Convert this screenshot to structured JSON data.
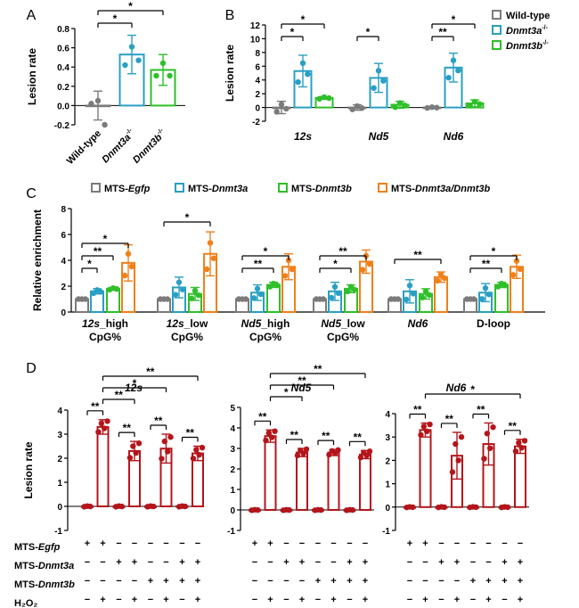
{
  "colors": {
    "gray": "#7b7b7b",
    "blue": "#2a9fc4",
    "green": "#2fbf2a",
    "orange": "#f08019",
    "red": "#b4151a",
    "star": "#000000"
  },
  "chart_data": [
    {
      "panel": "A",
      "type": "bar",
      "categories": [
        "Wild-type",
        "Dnmt3a",
        "Dnmt3b"
      ],
      "category_sup": [
        "",
        "-/-",
        "-/-"
      ],
      "category_italic": [
        false,
        true,
        true
      ],
      "ylabel": "Lesion rate",
      "ylim": [
        -0.2,
        0.8
      ],
      "yticks": [
        "-0.2",
        "0.0",
        "0.2",
        "0.4",
        "0.6",
        "0.8"
      ],
      "series": [
        {
          "values": [
            0.0,
            0.53,
            0.37
          ],
          "errors": [
            0.15,
            0.2,
            0.16
          ],
          "points": [
            [
              0.02,
              0.05,
              -0.2
            ],
            [
              0.42,
              0.61,
              0.47
            ],
            [
              0.31,
              0.44,
              0.31
            ]
          ],
          "colors": [
            "gray",
            "blue",
            "green"
          ]
        }
      ],
      "significance": [
        {
          "from": 0,
          "to": 1,
          "label": "*"
        },
        {
          "from": 0,
          "to": 2,
          "label": "*"
        }
      ]
    },
    {
      "panel": "B",
      "type": "bar",
      "categories": [
        "12s",
        "Nd5",
        "Nd6"
      ],
      "ylabel": "Lesion rate",
      "ylim": [
        -2,
        12
      ],
      "yticks": [
        "-2",
        "0",
        "2",
        "4",
        "6",
        "8",
        "10",
        "12"
      ],
      "legend": [
        "Wild-type",
        "Dnmt3a",
        "Dnmt3b"
      ],
      "legend_sup": [
        "",
        "-/-",
        "-/-"
      ],
      "series": [
        {
          "name": "Wild-type",
          "color": "gray",
          "values": [
            0,
            0,
            0
          ],
          "errors": [
            0.9,
            0.4,
            0.1
          ]
        },
        {
          "name": "Dnmt3a-/-",
          "color": "blue",
          "values": [
            5.3,
            4.3,
            5.8
          ],
          "errors": [
            2.3,
            2.1,
            2.1
          ]
        },
        {
          "name": "Dnmt3b-/-",
          "color": "green",
          "values": [
            1.4,
            0.4,
            0.6
          ],
          "errors": [
            0.2,
            0.5,
            0.5
          ]
        }
      ],
      "significance": [
        {
          "group": 0,
          "from": 0,
          "to": 1,
          "label": "*"
        },
        {
          "group": 0,
          "from": 0,
          "to": 2,
          "label": "*"
        },
        {
          "group": 1,
          "from": 0,
          "to": 1,
          "label": "*"
        },
        {
          "group": 2,
          "from": 0,
          "to": 1,
          "label": "**"
        },
        {
          "group": 2,
          "from": 0,
          "to": 2,
          "label": "*"
        }
      ]
    },
    {
      "panel": "C",
      "type": "bar",
      "categories": [
        "12s_high CpG%",
        "12s_low CpG%",
        "Nd5_high CpG%",
        "Nd5_low CpG%",
        "Nd6",
        "D-loop"
      ],
      "ylabel": "Relative enrichment",
      "ylim": [
        0,
        8
      ],
      "yticks": [
        "0",
        "2",
        "4",
        "6",
        "8"
      ],
      "legend": [
        "MTS-Egfp",
        "MTS-Dnmt3a",
        "MTS-Dnmt3b",
        "MTS-Dnmt3a/Dnmt3b"
      ],
      "series": [
        {
          "name": "MTS-Egfp",
          "color": "gray",
          "values": [
            1,
            1,
            1,
            1,
            1,
            1
          ],
          "errors": [
            0,
            0,
            0,
            0,
            0,
            0
          ]
        },
        {
          "name": "MTS-Dnmt3a",
          "color": "blue",
          "values": [
            1.6,
            1.9,
            1.5,
            1.6,
            1.6,
            1.5
          ],
          "errors": [
            0.2,
            0.8,
            0.6,
            0.7,
            0.9,
            0.7
          ]
        },
        {
          "name": "MTS-Dnmt3b",
          "color": "green",
          "values": [
            1.8,
            1.4,
            2.1,
            1.8,
            1.4,
            2.1
          ],
          "errors": [
            0.1,
            0.5,
            0.2,
            0.3,
            0.4,
            0.2
          ]
        },
        {
          "name": "MTS-Dnmt3a/Dnmt3b",
          "color": "orange",
          "values": [
            3.8,
            4.5,
            3.5,
            3.9,
            2.7,
            3.5
          ],
          "errors": [
            1.4,
            1.7,
            1.0,
            0.9,
            0.4,
            0.9
          ]
        }
      ],
      "significance": [
        {
          "group": 0,
          "from": 0,
          "to": 1,
          "label": "*"
        },
        {
          "group": 0,
          "from": 0,
          "to": 2,
          "label": "**"
        },
        {
          "group": 0,
          "from": 0,
          "to": 3,
          "label": "*"
        },
        {
          "group": 1,
          "from": 0,
          "to": 3,
          "label": "*"
        },
        {
          "group": 2,
          "from": 0,
          "to": 2,
          "label": "**"
        },
        {
          "group": 2,
          "from": 0,
          "to": 3,
          "label": "*"
        },
        {
          "group": 3,
          "from": 0,
          "to": 2,
          "label": "*"
        },
        {
          "group": 3,
          "from": 0,
          "to": 3,
          "label": "**"
        },
        {
          "group": 4,
          "from": 0,
          "to": 3,
          "label": "**"
        },
        {
          "group": 5,
          "from": 0,
          "to": 2,
          "label": "**"
        },
        {
          "group": 5,
          "from": 0,
          "to": 3,
          "label": "*"
        }
      ]
    },
    {
      "panel": "D-12s",
      "type": "bar",
      "title": "12s",
      "ylabel": "Lesion rate",
      "ylim": [
        -1,
        4
      ],
      "yticks": [
        "-1",
        "0",
        "1",
        "2",
        "3",
        "4"
      ],
      "values": [
        0,
        3.3,
        0,
        2.3,
        0,
        2.4,
        0,
        2.2
      ],
      "errors": [
        0.02,
        0.3,
        0.02,
        0.4,
        0.02,
        0.6,
        0.02,
        0.3
      ],
      "significance": [
        {
          "from": 0,
          "to": 1,
          "label": "**"
        },
        {
          "from": 2,
          "to": 3,
          "label": "**"
        },
        {
          "from": 4,
          "to": 5,
          "label": "**"
        },
        {
          "from": 6,
          "to": 7,
          "label": "**"
        },
        {
          "from": 1,
          "to": 3,
          "label": "**"
        },
        {
          "from": 1,
          "to": 5,
          "label": "*"
        },
        {
          "from": 1,
          "to": 7,
          "label": "**"
        }
      ]
    },
    {
      "panel": "D-Nd5",
      "type": "bar",
      "title": "Nd5",
      "ylim": [
        -1,
        5
      ],
      "yticks": [
        "-1",
        "0",
        "1",
        "2",
        "3",
        "4",
        "5"
      ],
      "values": [
        0,
        3.6,
        0,
        2.8,
        0,
        2.8,
        0,
        2.7
      ],
      "errors": [
        0.02,
        0.3,
        0.02,
        0.2,
        0.02,
        0.15,
        0.02,
        0.2
      ],
      "significance": [
        {
          "from": 0,
          "to": 1,
          "label": "**"
        },
        {
          "from": 2,
          "to": 3,
          "label": "**"
        },
        {
          "from": 4,
          "to": 5,
          "label": "**"
        },
        {
          "from": 6,
          "to": 7,
          "label": "**"
        },
        {
          "from": 1,
          "to": 3,
          "label": "*"
        },
        {
          "from": 1,
          "to": 5,
          "label": "**"
        },
        {
          "from": 1,
          "to": 7,
          "label": "**"
        }
      ]
    },
    {
      "panel": "D-Nd6",
      "type": "bar",
      "title": "Nd6",
      "ylim": [
        -1,
        4
      ],
      "yticks": [
        "-1",
        "0",
        "1",
        "2",
        "3",
        "4"
      ],
      "values": [
        0,
        3.3,
        0,
        2.2,
        0,
        2.7,
        0,
        2.6
      ],
      "errors": [
        0.02,
        0.3,
        0.02,
        1.0,
        0.02,
        0.9,
        0.02,
        0.3
      ],
      "significance": [
        {
          "from": 0,
          "to": 1,
          "label": "**"
        },
        {
          "from": 2,
          "to": 3,
          "label": "**"
        },
        {
          "from": 4,
          "to": 5,
          "label": "**"
        },
        {
          "from": 6,
          "to": 7,
          "label": "**"
        },
        {
          "from": 1,
          "to": 7,
          "label": "*"
        }
      ]
    }
  ],
  "panel_labels": [
    "A",
    "B",
    "C",
    "D"
  ],
  "condition_rows": [
    {
      "label": "MTS-",
      "italic": "Egfp",
      "signs": [
        "+",
        "+",
        "−",
        "−",
        "−",
        "−",
        "−",
        "−"
      ]
    },
    {
      "label": "MTS-",
      "italic": "Dnmt3a",
      "signs": [
        "−",
        "−",
        "+",
        "+",
        "−",
        "−",
        "+",
        "+"
      ]
    },
    {
      "label": "MTS-",
      "italic": "Dnmt3b",
      "signs": [
        "−",
        "−",
        "−",
        "−",
        "+",
        "+",
        "+",
        "+"
      ]
    },
    {
      "label": "H₂O₂",
      "italic": "",
      "signs": [
        "−",
        "+",
        "−",
        "+",
        "−",
        "+",
        "−",
        "+"
      ]
    }
  ]
}
